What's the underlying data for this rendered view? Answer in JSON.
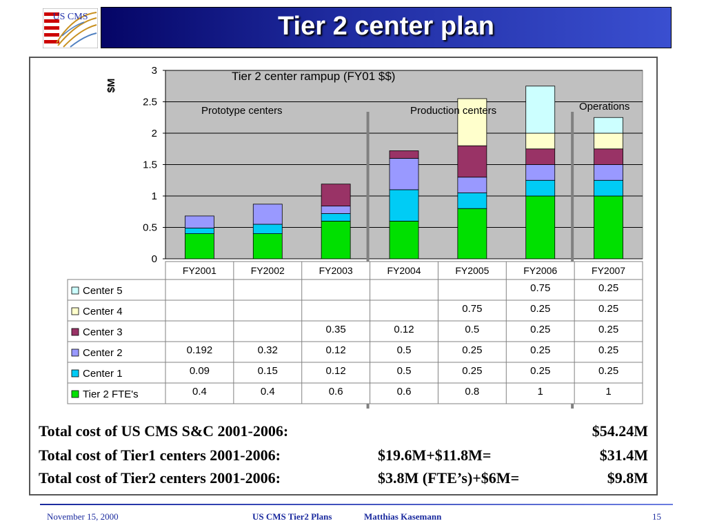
{
  "slide": {
    "title": "Tier 2 center plan",
    "logo_text": "US CMS"
  },
  "chart_data": {
    "type": "bar",
    "stacked": true,
    "title": "Tier 2 center rampup (FY01 $$)",
    "ylabel": "$M",
    "xlabel": "",
    "ylim": [
      0,
      3
    ],
    "yticks": [
      "0",
      "0.5",
      "1",
      "1.5",
      "2",
      "2.5",
      "3"
    ],
    "grid": true,
    "categories": [
      "FY2001",
      "FY2002",
      "FY2003",
      "FY2004",
      "FY2005",
      "FY2006",
      "FY2007"
    ],
    "series": [
      {
        "name": "Tier 2 FTE's",
        "color": "#00e000",
        "values": [
          0.4,
          0.4,
          0.6,
          0.6,
          0.8,
          1,
          1
        ],
        "labels": [
          "0.4",
          "0.4",
          "0.6",
          "0.6",
          "0.8",
          "1",
          "1"
        ]
      },
      {
        "name": "Center 1",
        "color": "#00ccf5",
        "values": [
          0.09,
          0.15,
          0.12,
          0.5,
          0.25,
          0.25,
          0.25
        ],
        "labels": [
          "0.09",
          "0.15",
          "0.12",
          "0.5",
          "0.25",
          "0.25",
          "0.25"
        ]
      },
      {
        "name": "Center 2",
        "color": "#9999ff",
        "values": [
          0.192,
          0.32,
          0.12,
          0.5,
          0.25,
          0.25,
          0.25
        ],
        "labels": [
          "0.192",
          "0.32",
          "0.12",
          "0.5",
          "0.25",
          "0.25",
          "0.25"
        ]
      },
      {
        "name": "Center 3",
        "color": "#993366",
        "values": [
          0,
          0,
          0.35,
          0.12,
          0.5,
          0.25,
          0.25
        ],
        "labels": [
          "",
          "",
          "0.35",
          "0.12",
          "0.5",
          "0.25",
          "0.25"
        ]
      },
      {
        "name": "Center 4",
        "color": "#ffffcc",
        "values": [
          0,
          0,
          0,
          0,
          0.75,
          0.25,
          0.25
        ],
        "labels": [
          "",
          "",
          "",
          "",
          "0.75",
          "0.25",
          "0.25"
        ]
      },
      {
        "name": "Center 5",
        "color": "#ccffff",
        "values": [
          0,
          0,
          0,
          0,
          0,
          0.75,
          0.25
        ],
        "labels": [
          "",
          "",
          "",
          "",
          "",
          "0.75",
          "0.25"
        ]
      }
    ],
    "phase_separators_after": [
      "FY2003",
      "FY2006"
    ],
    "annotations": [
      "Prototype centers",
      "Production centers",
      "Operations"
    ]
  },
  "summary": [
    {
      "label": "Total cost of US CMS S&C 2001-2006:",
      "detail": "",
      "total": "$54.24M"
    },
    {
      "label": "Total cost of Tier1 centers 2001-2006:",
      "detail": "$19.6M+$11.8M=",
      "total": "$31.4M"
    },
    {
      "label": "Total cost of Tier2 centers 2001-2006:",
      "detail": "$3.8M (FTE’s)+$6M=",
      "total": "$9.8M"
    }
  ],
  "footer": {
    "date": "November 15, 2000",
    "title": "US CMS Tier2 Plans",
    "author": "Matthias Kasemann",
    "page": "15"
  }
}
